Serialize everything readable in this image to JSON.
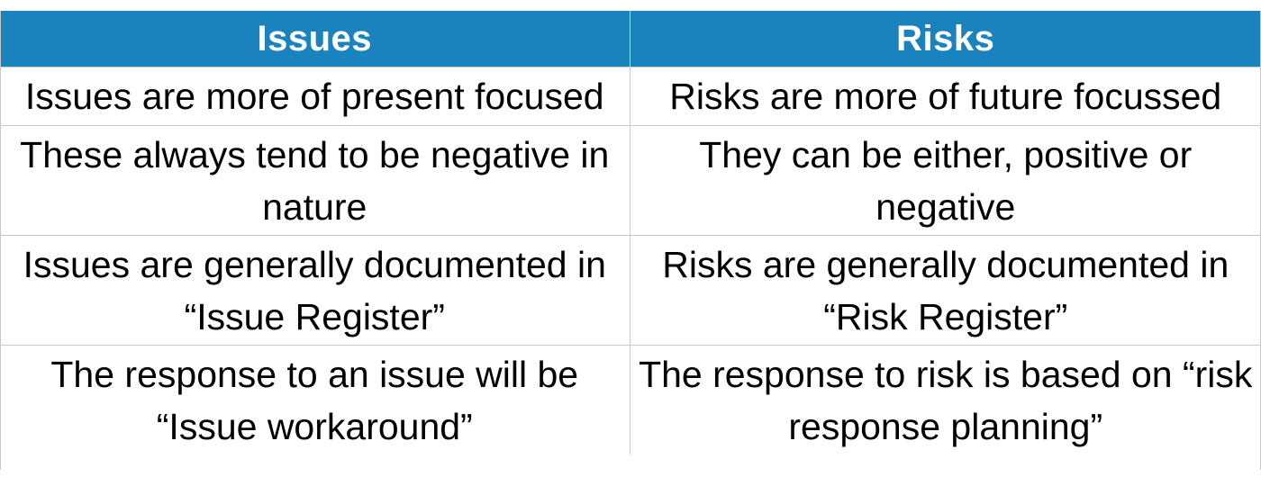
{
  "table": {
    "headers": [
      "Issues",
      "Risks"
    ],
    "rows": [
      [
        "Issues are more of present focused",
        "Risks are more of future focussed"
      ],
      [
        "These always tend to be negative in nature",
        "They can be either, positive or negative"
      ],
      [
        "Issues are generally documented in “Issue Register”",
        "Risks are generally documented in “Risk Register”"
      ],
      [
        "The response to an issue will be “Issue workaround”",
        "The response to risk is based on “risk response planning”"
      ]
    ]
  },
  "colors": {
    "header_bg": "#1a82bd",
    "header_text": "#ffffff",
    "border": "#c8c8c8"
  }
}
